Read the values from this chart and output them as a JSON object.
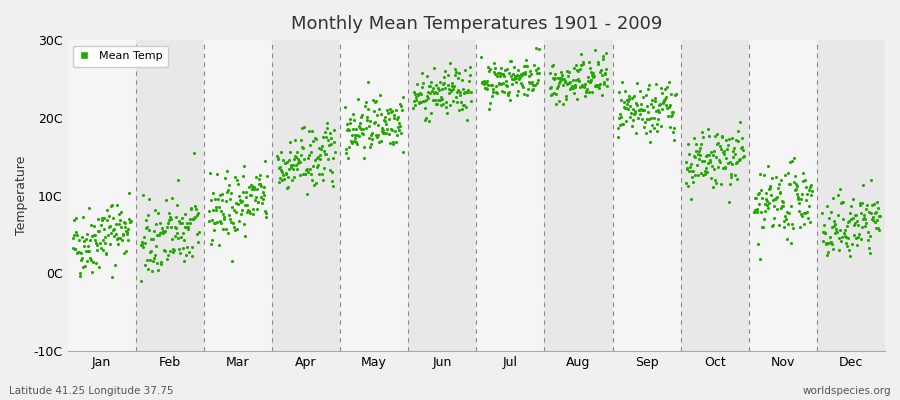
{
  "title": "Monthly Mean Temperatures 1901 - 2009",
  "ylabel": "Temperature",
  "bottom_left_label": "Latitude 41.25 Longitude 37.75",
  "bottom_right_label": "worldspecies.org",
  "legend_label": "Mean Temp",
  "dot_color": "#22aa00",
  "background_color": "#f0f0f0",
  "plot_bg_color": "#f0f0f0",
  "band_color_light": "#f5f5f5",
  "band_color_dark": "#e8e8e8",
  "ylim": [
    -10,
    30
  ],
  "yticks": [
    -10,
    0,
    10,
    20,
    30
  ],
  "ytick_labels": [
    "-10C",
    "0C",
    "10C",
    "20C",
    "30C"
  ],
  "months": [
    "Jan",
    "Feb",
    "Mar",
    "Apr",
    "May",
    "Jun",
    "Jul",
    "Aug",
    "Sep",
    "Oct",
    "Nov",
    "Dec"
  ],
  "monthly_means": [
    3.5,
    3.8,
    7.8,
    13.5,
    18.5,
    22.5,
    24.5,
    24.0,
    20.0,
    13.5,
    8.0,
    5.0
  ],
  "monthly_stds": [
    2.2,
    2.5,
    2.2,
    2.0,
    1.8,
    1.5,
    1.3,
    1.5,
    1.8,
    2.0,
    2.2,
    2.0
  ],
  "monthly_trends": [
    0.025,
    0.02,
    0.02,
    0.018,
    0.015,
    0.012,
    0.01,
    0.012,
    0.015,
    0.018,
    0.02,
    0.022
  ],
  "n_years": 109,
  "start_year": 1901,
  "seed": 42
}
